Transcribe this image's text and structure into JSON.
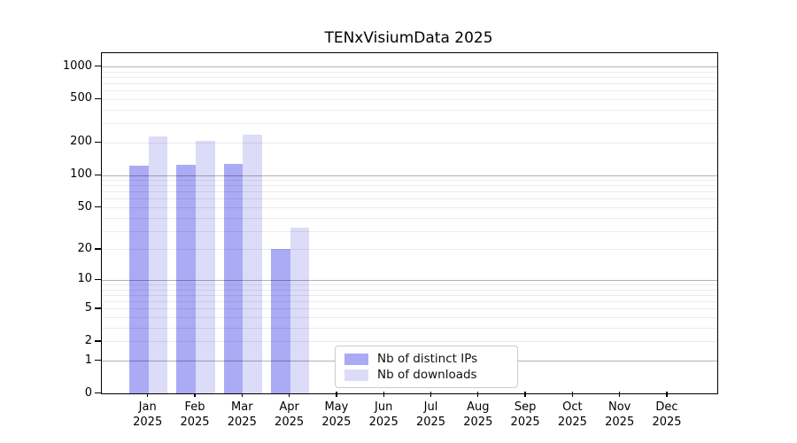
{
  "title": "TENxVisiumData 2025",
  "chart_data": {
    "type": "bar",
    "title": "TENxVisiumData 2025",
    "xlabel": "",
    "ylabel": "",
    "scale": "log1p",
    "ylim": [
      0,
      1324
    ],
    "yticks": [
      0,
      1,
      2,
      5,
      10,
      20,
      50,
      100,
      200,
      500,
      1000
    ],
    "major_gridlines": [
      1,
      10,
      100,
      1000
    ],
    "minor_gridlines": [
      2,
      3,
      4,
      5,
      6,
      7,
      8,
      9,
      20,
      30,
      40,
      50,
      60,
      70,
      80,
      90,
      200,
      300,
      400,
      500,
      600,
      700,
      800,
      900
    ],
    "categories": [
      {
        "month": "Jan",
        "year": "2025"
      },
      {
        "month": "Feb",
        "year": "2025"
      },
      {
        "month": "Mar",
        "year": "2025"
      },
      {
        "month": "Apr",
        "year": "2025"
      },
      {
        "month": "May",
        "year": "2025"
      },
      {
        "month": "Jun",
        "year": "2025"
      },
      {
        "month": "Jul",
        "year": "2025"
      },
      {
        "month": "Aug",
        "year": "2025"
      },
      {
        "month": "Sep",
        "year": "2025"
      },
      {
        "month": "Oct",
        "year": "2025"
      },
      {
        "month": "Nov",
        "year": "2025"
      },
      {
        "month": "Dec",
        "year": "2025"
      }
    ],
    "series": [
      {
        "name": "Nb of distinct IPs",
        "color": "#aaaaf5",
        "values": [
          123,
          124,
          127,
          20,
          0,
          0,
          0,
          0,
          0,
          0,
          0,
          0
        ]
      },
      {
        "name": "Nb of downloads",
        "color": "#dcdcf8",
        "values": [
          228,
          208,
          238,
          32,
          0,
          0,
          0,
          0,
          0,
          0,
          0,
          0
        ]
      }
    ],
    "legend_position": "bottom-center",
    "grid": "on"
  }
}
